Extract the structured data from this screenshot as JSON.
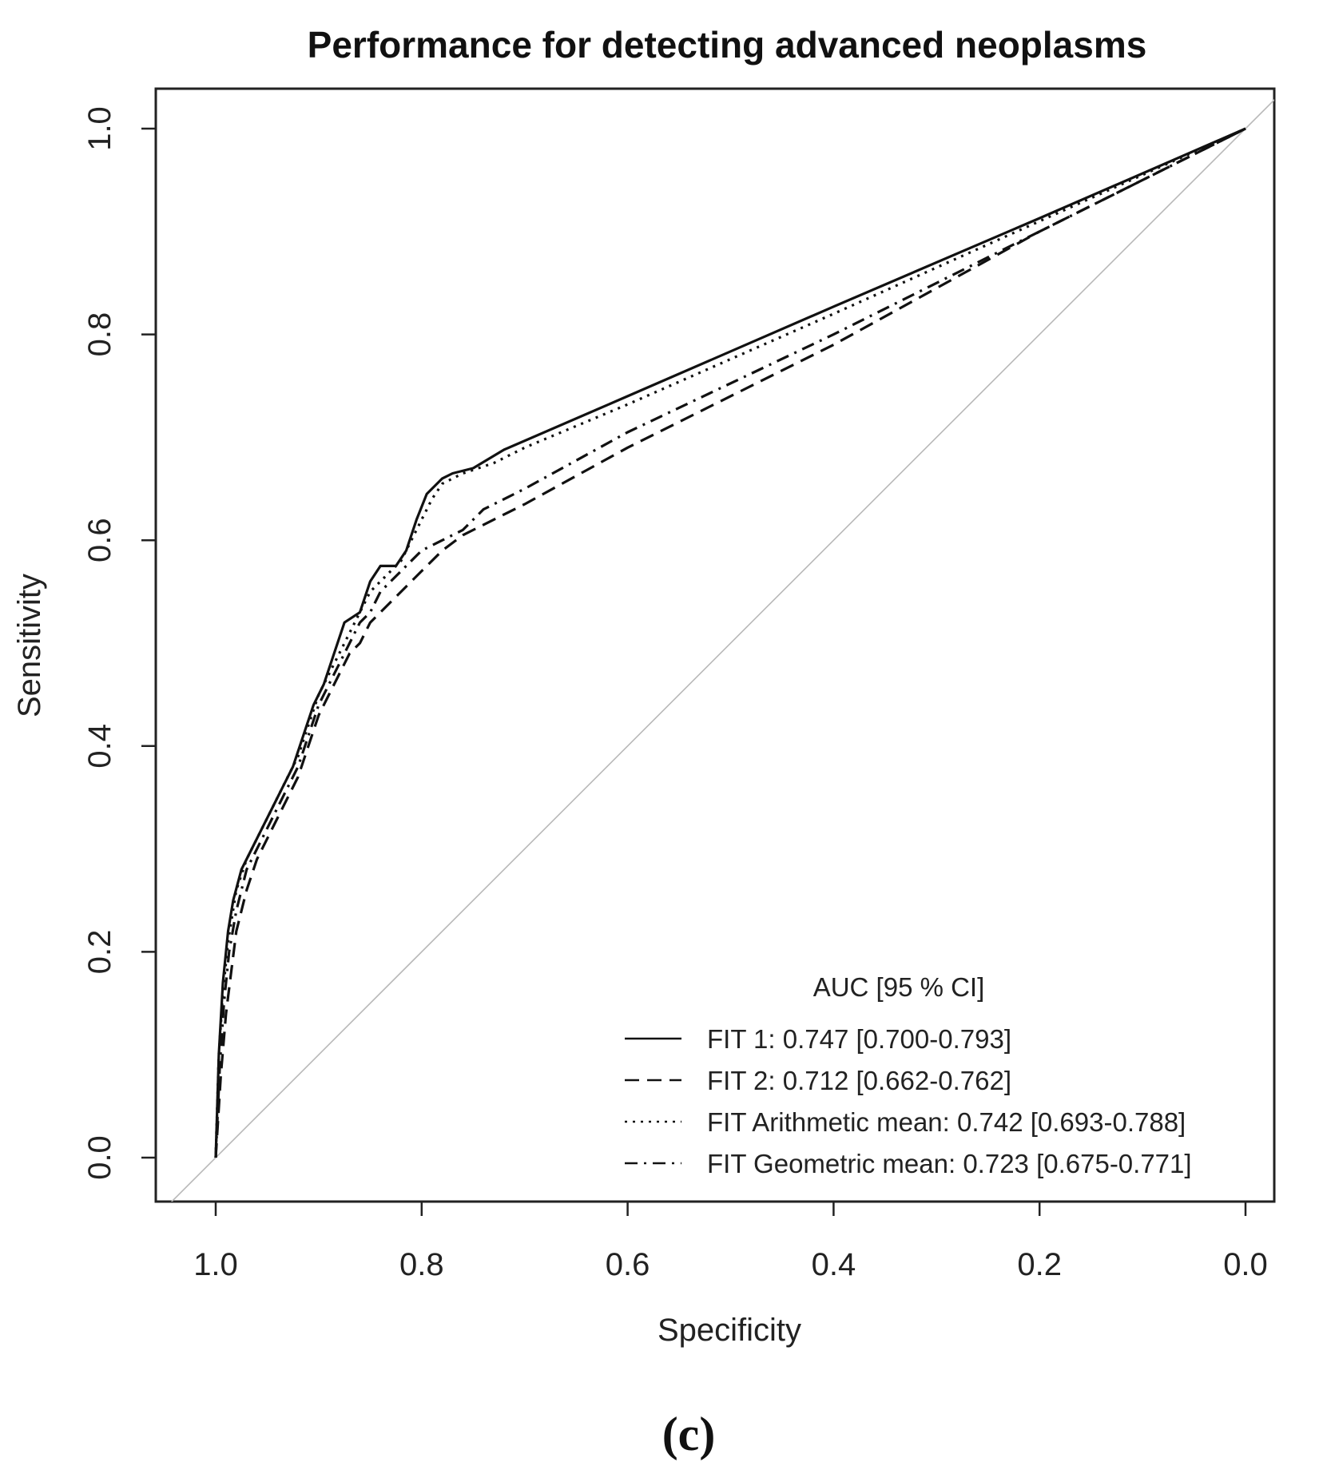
{
  "chart_data": {
    "type": "line",
    "title": "Performance for detecting advanced neoplasms",
    "xlabel": "Specificity",
    "ylabel": "Sensitivity",
    "xlim": [
      1.0,
      0.0
    ],
    "ylim": [
      0.0,
      1.0
    ],
    "x_ticks": [
      "1.0",
      "0.8",
      "0.6",
      "0.4",
      "0.2",
      "0.0"
    ],
    "y_ticks": [
      "0.0",
      "0.2",
      "0.4",
      "0.6",
      "0.8",
      "1.0"
    ],
    "reference_line": "diagonal",
    "legend_title": "AUC [95 % CI]",
    "legend_position": "bottom-right",
    "panel_label": "(c)",
    "series": [
      {
        "name": "FIT 1",
        "label": "FIT 1: 0.747 [0.700-0.793]",
        "style": "solid",
        "specificity": [
          1.0,
          0.997,
          0.993,
          0.988,
          0.983,
          0.975,
          0.965,
          0.955,
          0.945,
          0.935,
          0.925,
          0.915,
          0.905,
          0.895,
          0.885,
          0.875,
          0.86,
          0.85,
          0.84,
          0.825,
          0.815,
          0.805,
          0.795,
          0.78,
          0.77,
          0.75,
          0.72,
          0.6,
          0.4,
          0.2,
          0.0
        ],
        "sensitivity": [
          0.0,
          0.1,
          0.17,
          0.22,
          0.25,
          0.28,
          0.3,
          0.32,
          0.34,
          0.36,
          0.38,
          0.41,
          0.44,
          0.46,
          0.49,
          0.52,
          0.53,
          0.56,
          0.575,
          0.575,
          0.59,
          0.62,
          0.645,
          0.66,
          0.665,
          0.67,
          0.688,
          0.74,
          0.827,
          0.913,
          1.0
        ]
      },
      {
        "name": "FIT 2",
        "label": "FIT 2: 0.712 [0.662-0.762]",
        "style": "dashed",
        "specificity": [
          1.0,
          0.995,
          0.99,
          0.985,
          0.98,
          0.97,
          0.96,
          0.95,
          0.94,
          0.93,
          0.92,
          0.91,
          0.9,
          0.89,
          0.88,
          0.87,
          0.86,
          0.85,
          0.84,
          0.83,
          0.82,
          0.8,
          0.78,
          0.76,
          0.73,
          0.7,
          0.6,
          0.4,
          0.2,
          0.0
        ],
        "sensitivity": [
          0.0,
          0.08,
          0.14,
          0.18,
          0.22,
          0.26,
          0.29,
          0.31,
          0.33,
          0.35,
          0.37,
          0.4,
          0.43,
          0.45,
          0.47,
          0.49,
          0.5,
          0.52,
          0.53,
          0.54,
          0.55,
          0.57,
          0.59,
          0.605,
          0.62,
          0.635,
          0.69,
          0.79,
          0.9,
          1.0
        ]
      },
      {
        "name": "FIT Arithmetic mean",
        "label": "FIT Arithmetic mean: 0.742 [0.693-0.788]",
        "style": "dotted",
        "specificity": [
          1.0,
          0.997,
          0.993,
          0.988,
          0.98,
          0.97,
          0.96,
          0.95,
          0.94,
          0.93,
          0.92,
          0.91,
          0.9,
          0.89,
          0.88,
          0.87,
          0.86,
          0.85,
          0.84,
          0.83,
          0.82,
          0.81,
          0.8,
          0.79,
          0.78,
          0.76,
          0.73,
          0.7,
          0.6,
          0.4,
          0.2,
          0.0
        ],
        "sensitivity": [
          0.0,
          0.1,
          0.16,
          0.21,
          0.26,
          0.29,
          0.31,
          0.33,
          0.35,
          0.37,
          0.39,
          0.42,
          0.45,
          0.47,
          0.49,
          0.51,
          0.53,
          0.55,
          0.56,
          0.57,
          0.58,
          0.6,
          0.62,
          0.64,
          0.655,
          0.665,
          0.675,
          0.69,
          0.732,
          0.82,
          0.91,
          1.0
        ]
      },
      {
        "name": "FIT Geometric mean",
        "label": "FIT Geometric mean: 0.723 [0.675-0.771]",
        "style": "dashdot",
        "specificity": [
          1.0,
          0.996,
          0.992,
          0.987,
          0.98,
          0.97,
          0.96,
          0.95,
          0.94,
          0.93,
          0.92,
          0.91,
          0.9,
          0.89,
          0.88,
          0.87,
          0.86,
          0.85,
          0.84,
          0.83,
          0.82,
          0.8,
          0.78,
          0.76,
          0.74,
          0.7,
          0.6,
          0.4,
          0.2,
          0.0
        ],
        "sensitivity": [
          0.0,
          0.09,
          0.15,
          0.2,
          0.24,
          0.28,
          0.3,
          0.32,
          0.34,
          0.36,
          0.38,
          0.41,
          0.44,
          0.46,
          0.48,
          0.5,
          0.52,
          0.53,
          0.55,
          0.56,
          0.57,
          0.59,
          0.6,
          0.61,
          0.63,
          0.65,
          0.705,
          0.8,
          0.9,
          1.0
        ]
      }
    ]
  }
}
